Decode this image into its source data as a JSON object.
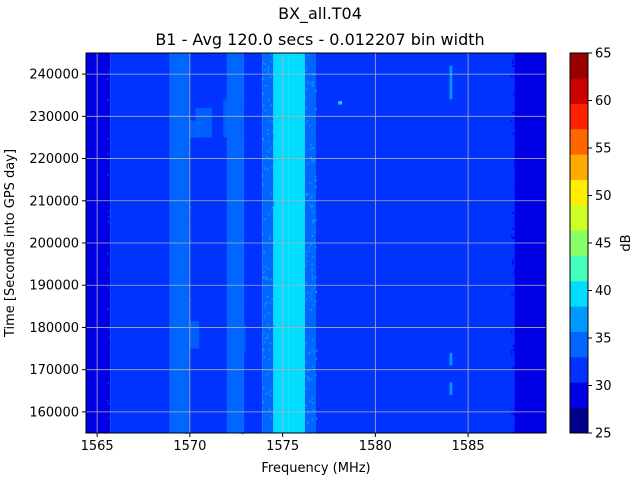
{
  "chart_data": {
    "type": "heatmap",
    "title": "BX_all.T04",
    "subtitle": "B1 - Avg 120.0 secs - 0.012207 bin width",
    "xlabel": "Frequency (MHz)",
    "ylabel": "Time [Seconds into GPS day]",
    "colorbar_label": "dB",
    "xlim": [
      1564.4,
      1589.2
    ],
    "ylim": [
      155000,
      245000
    ],
    "xticks": [
      1565,
      1570,
      1575,
      1580,
      1585
    ],
    "yticks": [
      160000,
      170000,
      180000,
      190000,
      200000,
      210000,
      220000,
      230000,
      240000
    ],
    "xtick_labels": [
      "1565",
      "1570",
      "1575",
      "1580",
      "1585"
    ],
    "ytick_labels": [
      "160000",
      "170000",
      "180000",
      "190000",
      "200000",
      "210000",
      "220000",
      "230000",
      "240000"
    ],
    "color_range": [
      25,
      65
    ],
    "colorbar_ticks": [
      25,
      30,
      35,
      40,
      45,
      50,
      55,
      60,
      65
    ],
    "colorbar_tick_labels": [
      "25",
      "30",
      "35",
      "40",
      "45",
      "50",
      "55",
      "60",
      "65"
    ],
    "colormap_levels": [
      "#00008b",
      "#0000e6",
      "#0033ff",
      "#0066ff",
      "#0099ff",
      "#00ddff",
      "#44ffbb",
      "#88ff66",
      "#ccff22",
      "#ffee00",
      "#ffaa00",
      "#ff6600",
      "#ff2200",
      "#cc0000",
      "#990000"
    ],
    "grid": true,
    "frequency_bands": [
      {
        "start": 1564.4,
        "end": 1565.7,
        "db": 29
      },
      {
        "start": 1565.7,
        "end": 1568.9,
        "db": 32.5
      },
      {
        "start": 1568.9,
        "end": 1570.0,
        "db": 34
      },
      {
        "start": 1570.0,
        "end": 1572.0,
        "db": 32.7
      },
      {
        "start": 1572.0,
        "end": 1572.9,
        "db": 33.8
      },
      {
        "start": 1572.9,
        "end": 1573.9,
        "db": 32.5
      },
      {
        "start": 1573.9,
        "end": 1574.5,
        "db": 35
      },
      {
        "start": 1574.5,
        "end": 1575.3,
        "db": 38.5
      },
      {
        "start": 1575.3,
        "end": 1576.2,
        "db": 39
      },
      {
        "start": 1576.2,
        "end": 1576.8,
        "db": 35.5
      },
      {
        "start": 1576.8,
        "end": 1587.5,
        "db": 32.5
      },
      {
        "start": 1587.5,
        "end": 1589.2,
        "db": 29
      }
    ],
    "time_bands": [
      {
        "freq_start": 1569.1,
        "freq_end": 1570.5,
        "time_start": 175000,
        "time_end": 181500,
        "db": 35
      },
      {
        "freq_start": 1572.0,
        "freq_end": 1573.0,
        "time_start": 174000,
        "time_end": 181000,
        "db": 35
      },
      {
        "freq_start": 1569.0,
        "freq_end": 1570.6,
        "time_start": 225000,
        "time_end": 229000,
        "db": 35
      },
      {
        "freq_start": 1570.3,
        "freq_end": 1571.2,
        "time_start": 225000,
        "time_end": 232000,
        "db": 34
      },
      {
        "freq_start": 1571.8,
        "freq_end": 1572.9,
        "time_start": 225000,
        "time_end": 234000,
        "db": 34
      }
    ],
    "spikes": [
      {
        "freq_start": 1584.0,
        "freq_end": 1584.15,
        "time_start": 234000,
        "time_end": 242000,
        "db": 37
      },
      {
        "freq_start": 1584.0,
        "freq_end": 1584.15,
        "time_start": 164000,
        "time_end": 167000,
        "db": 36
      },
      {
        "freq_start": 1584.0,
        "freq_end": 1584.15,
        "time_start": 171000,
        "time_end": 174000,
        "db": 36
      },
      {
        "freq_start": 1578.0,
        "freq_end": 1578.2,
        "time_start": 232800,
        "time_end": 233600,
        "db": 39
      }
    ]
  }
}
